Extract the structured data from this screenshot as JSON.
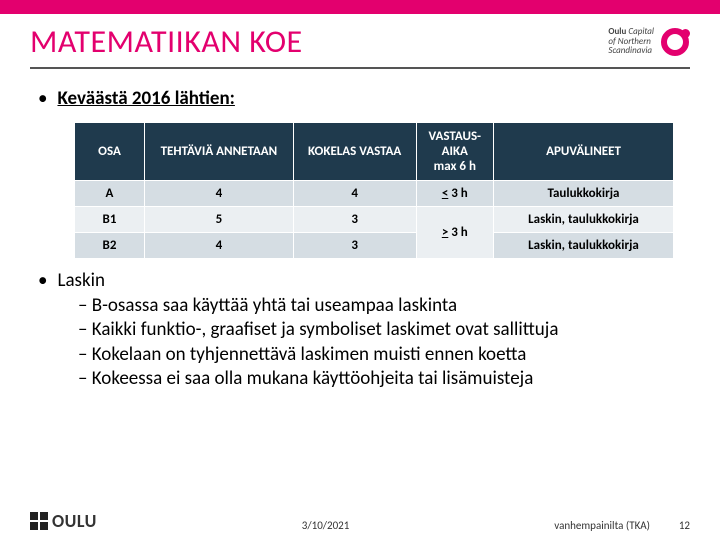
{
  "brand_color": "#e3006e",
  "title": "MATEMATIIKAN KOE",
  "logo_right": {
    "l1": "Oulu",
    "l2": "Capital",
    "l3": "of Northern",
    "l4": "Scandinavia"
  },
  "intro": "Keväästä 2016 lähtien:",
  "table": {
    "headers": [
      "OSA",
      "TEHTÄVIÄ ANNETAAN",
      "KOKELAS VASTAA",
      "VASTAUS-\nAIKA\nmax 6 h",
      "APUVÄLINEET"
    ],
    "rows": [
      {
        "cells": [
          "A",
          "4",
          "4",
          "< 3 h",
          "Taulukkokirja"
        ],
        "merge_time": false
      },
      {
        "cells": [
          "B1",
          "5",
          "3",
          "",
          "Laskin, taulukkokirja"
        ],
        "merge_start": true,
        "merge_text": "> 3 h"
      },
      {
        "cells": [
          "B2",
          "4",
          "3",
          "",
          "Laskin, taulukkokirja"
        ],
        "merge_cont": true
      }
    ],
    "header_bg": "#1f3a4d",
    "row_odd_bg": "#d5dde3",
    "row_even_bg": "#ebeff2"
  },
  "list_heading": "Laskin",
  "list_items": [
    "B-osassa saa käyttää yhtä tai useampaa laskinta",
    "Kaikki funktio-, graafiset ja symboliset laskimet ovat sallittuja",
    "Kokelaan on tyhjennettävä laskimen muisti ennen koetta",
    "Kokeessa ei saa olla mukana käyttöohjeita tai lisämuisteja"
  ],
  "footer": {
    "logo": "OULU",
    "date": "3/10/2021",
    "event": "vanhempainilta (TKA)",
    "page": "12"
  }
}
